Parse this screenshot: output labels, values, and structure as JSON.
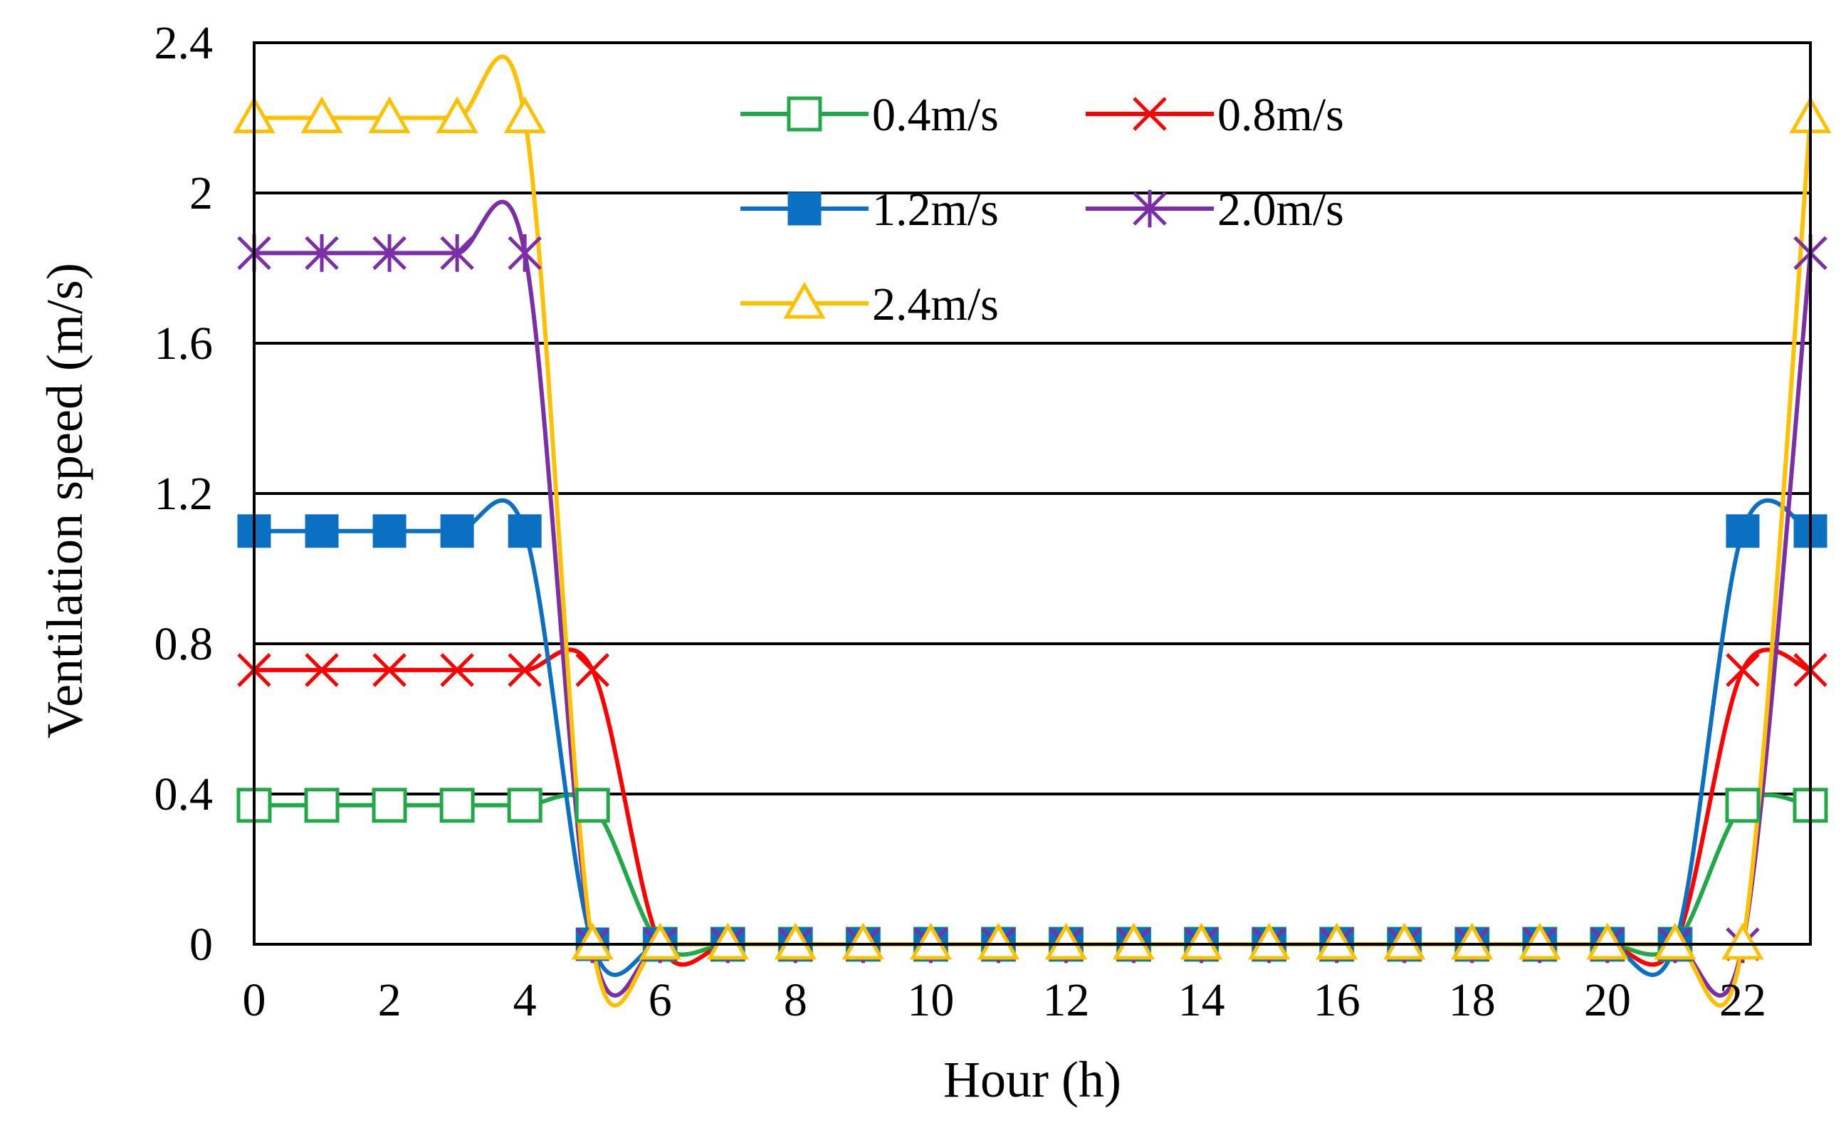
{
  "chart_data": {
    "type": "line",
    "title": "",
    "xlabel": "Hour (h)",
    "ylabel": "Ventilation speed (m/s)",
    "xlim": [
      0,
      23
    ],
    "ylim": [
      0,
      2.4
    ],
    "xticks": [
      0,
      2,
      4,
      6,
      8,
      10,
      12,
      14,
      16,
      18,
      20,
      22
    ],
    "xtick_labels": [
      "0",
      "2",
      "4",
      "6",
      "8",
      "10",
      "12",
      "14",
      "16",
      "18",
      "20",
      "22"
    ],
    "yticks": [
      0,
      0.4,
      0.8,
      1.2,
      1.6,
      2.0,
      2.4
    ],
    "ytick_labels": [
      "0",
      "0.4",
      "0.8",
      "1.2",
      "1.6",
      "2",
      "2.4"
    ],
    "grid": "horizontal",
    "legend_position": "top-center",
    "x": [
      0,
      1,
      2,
      3,
      4,
      5,
      6,
      7,
      8,
      9,
      10,
      11,
      12,
      13,
      14,
      15,
      16,
      17,
      18,
      19,
      20,
      21,
      22,
      23
    ],
    "series": [
      {
        "name": "0.4m/s",
        "color": "#21a848",
        "marker": "open-square",
        "values": [
          0.37,
          0.37,
          0.37,
          0.37,
          0.37,
          0.37,
          0,
          0,
          0,
          0,
          0,
          0,
          0,
          0,
          0,
          0,
          0,
          0,
          0,
          0,
          0,
          0,
          0.37,
          0.37
        ]
      },
      {
        "name": "0.8m/s",
        "color": "#ff0000",
        "marker": "x",
        "values": [
          0.73,
          0.73,
          0.73,
          0.73,
          0.73,
          0.73,
          0,
          0,
          0,
          0,
          0,
          0,
          0,
          0,
          0,
          0,
          0,
          0,
          0,
          0,
          0,
          0,
          0.73,
          0.73
        ]
      },
      {
        "name": "1.2m/s",
        "color": "#0b6fc2",
        "marker": "filled-square",
        "values": [
          1.1,
          1.1,
          1.1,
          1.1,
          1.1,
          0,
          0,
          0,
          0,
          0,
          0,
          0,
          0,
          0,
          0,
          0,
          0,
          0,
          0,
          0,
          0,
          0,
          1.1,
          1.1
        ]
      },
      {
        "name": "2.0m/s",
        "color": "#7b2fa6",
        "marker": "star",
        "values": [
          1.84,
          1.84,
          1.84,
          1.84,
          1.84,
          0,
          0,
          0,
          0,
          0,
          0,
          0,
          0,
          0,
          0,
          0,
          0,
          0,
          0,
          0,
          0,
          0,
          0,
          1.84
        ]
      },
      {
        "name": "2.4m/s",
        "color": "#ffc000",
        "marker": "open-triangle",
        "values": [
          2.2,
          2.2,
          2.2,
          2.2,
          2.2,
          0,
          0,
          0,
          0,
          0,
          0,
          0,
          0,
          0,
          0,
          0,
          0,
          0,
          0,
          0,
          0,
          0,
          0,
          2.2
        ]
      }
    ]
  }
}
